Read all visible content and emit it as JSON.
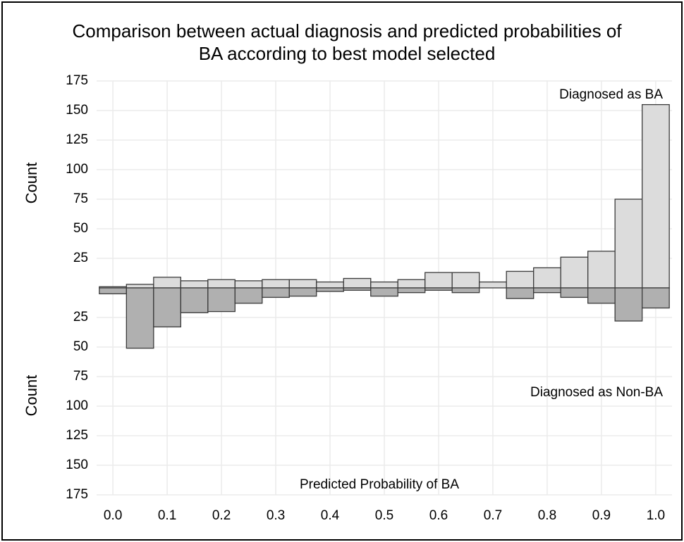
{
  "chart_data": {
    "type": "histogram",
    "title": "Comparison between actual diagnosis and predicted probabilities of",
    "subtitle": "BA according to best model selected",
    "xlabel": "Predicted Probability of BA",
    "ylabel_top": "Count",
    "ylabel_bottom": "Count",
    "bins": [
      -0.025,
      0.025,
      0.075,
      0.125,
      0.175,
      0.225,
      0.275,
      0.325,
      0.375,
      0.425,
      0.475,
      0.525,
      0.575,
      0.625,
      0.675,
      0.725,
      0.775,
      0.825,
      0.875,
      0.925,
      0.975,
      1.025
    ],
    "series": [
      {
        "name": "Diagnosed as BA",
        "color": "#dcdcdc",
        "values": [
          1,
          3,
          9,
          6,
          7,
          6,
          7,
          7,
          5,
          8,
          5,
          7,
          13,
          13,
          5,
          14,
          17,
          26,
          31,
          75,
          155
        ]
      },
      {
        "name": "Diagnosed as Non-BA",
        "color": "#b0b0b0",
        "values": [
          -5,
          -51,
          -33,
          -21,
          -20,
          -13,
          -8,
          -7,
          -3,
          -2,
          -7,
          -4,
          -2,
          -4,
          0,
          -9,
          -4,
          -8,
          -13,
          -28,
          -17
        ]
      }
    ],
    "xlim": [
      -0.03,
      1.03
    ],
    "ylim": [
      -175,
      175
    ],
    "xticks": [
      {
        "value": 0,
        "label": "0.0"
      },
      0.1,
      0.2,
      0.3,
      0.4,
      0.5,
      0.6,
      0.7,
      0.8,
      0.9,
      {
        "value": 1,
        "label": "1.0"
      }
    ],
    "yticks": [
      {
        "value": -175,
        "label": "175"
      },
      {
        "value": -150,
        "label": "150"
      },
      {
        "value": -125,
        "label": "125"
      },
      {
        "value": -100,
        "label": "100"
      },
      {
        "value": -75,
        "label": "75"
      },
      {
        "value": -50,
        "label": "50"
      },
      {
        "value": -25,
        "label": "25"
      },
      25,
      50,
      75,
      100,
      125,
      150,
      175
    ],
    "grid": true
  }
}
